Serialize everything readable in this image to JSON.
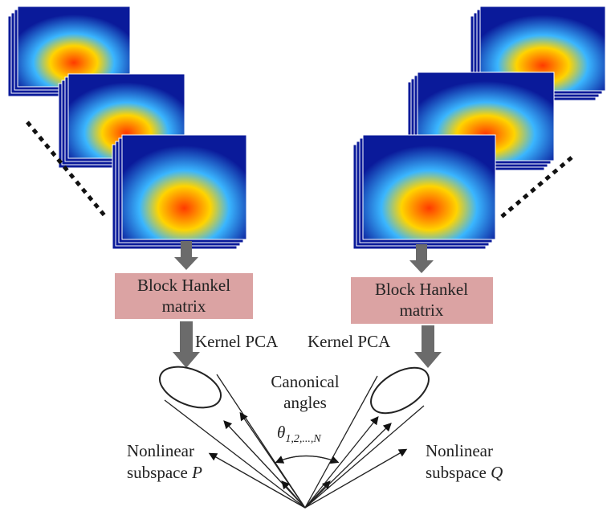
{
  "boxes": [
    {
      "lines": [
        "Block Hankel",
        "matrix"
      ]
    },
    {
      "lines": [
        "Block Hankel",
        "matrix"
      ]
    }
  ],
  "kernel_labels": [
    "Kernel PCA",
    "Kernel PCA"
  ],
  "canonical": {
    "lines": [
      "Canonical",
      "angles"
    ],
    "theta": "θ",
    "subscript": "1,2,...,N"
  },
  "subspaces": [
    {
      "lines": [
        "Nonlinear",
        "subspace"
      ],
      "symbol": "P"
    },
    {
      "lines": [
        "Nonlinear",
        "subspace"
      ],
      "symbol": "Q"
    }
  ]
}
